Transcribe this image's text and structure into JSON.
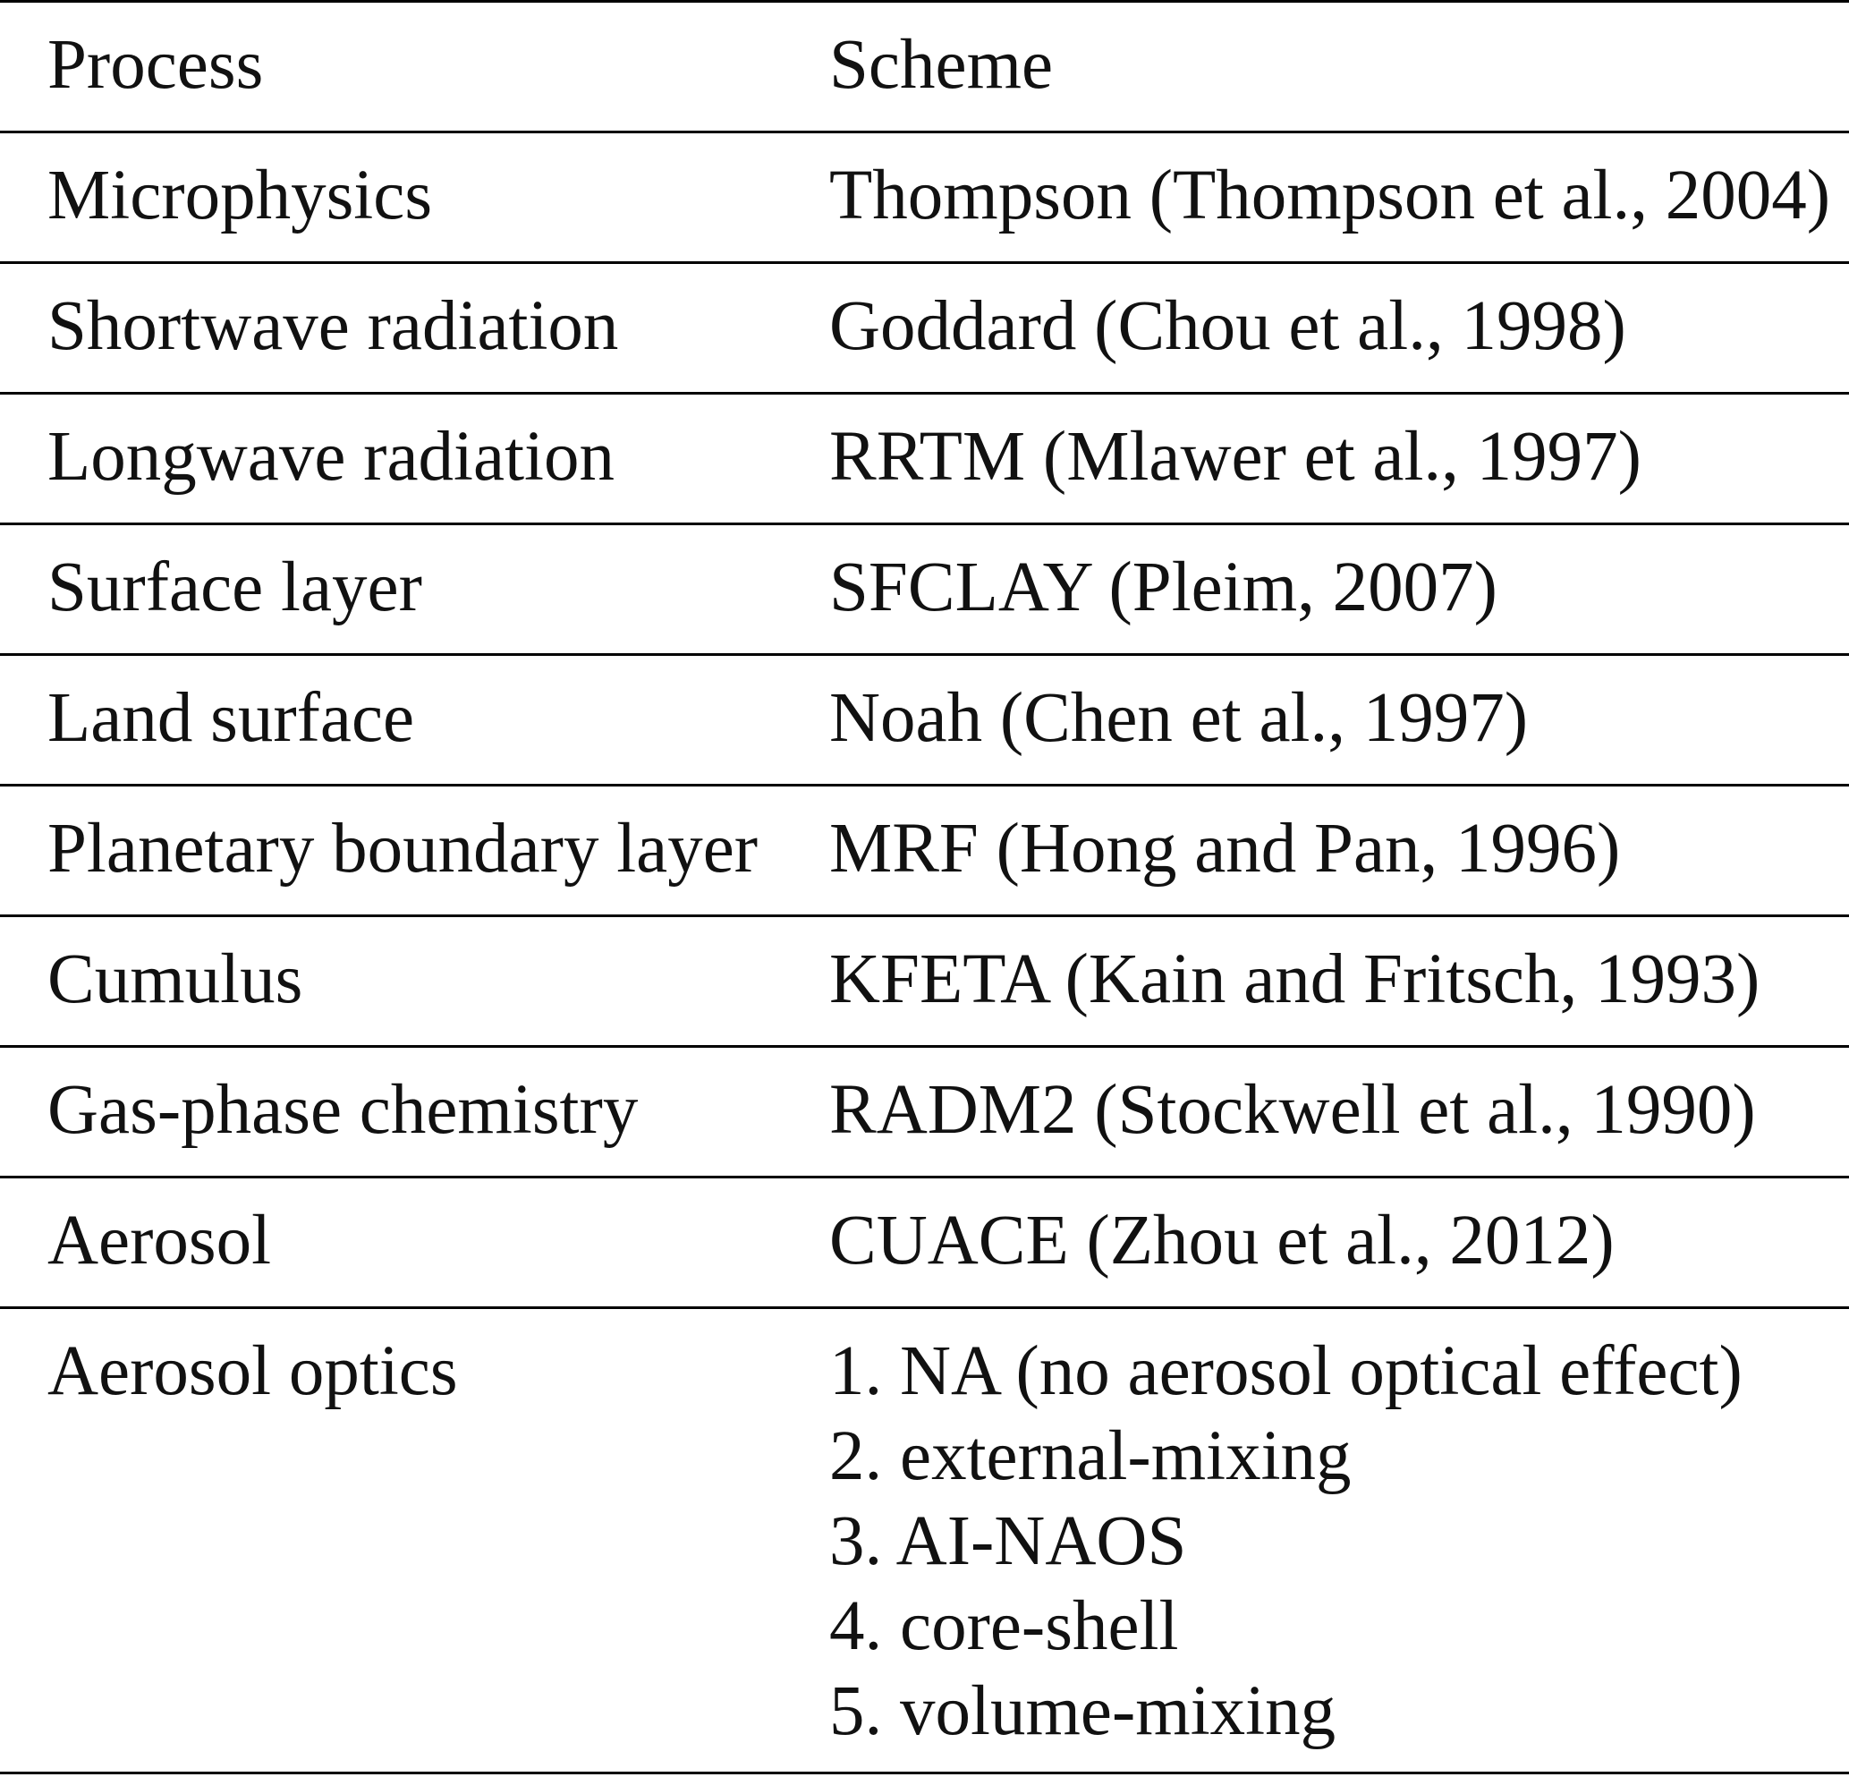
{
  "table": {
    "header": [
      "Process",
      "Scheme"
    ],
    "rows": [
      [
        "Microphysics",
        "Thompson (Thompson et al., 2004)"
      ],
      [
        "Shortwave radiation",
        "Goddard (Chou et al., 1998)"
      ],
      [
        "Longwave radiation",
        "RRTM (Mlawer et al., 1997)"
      ],
      [
        "Surface layer",
        "SFCLAY (Pleim, 2007)"
      ],
      [
        "Land surface",
        "Noah (Chen et al., 1997)"
      ],
      [
        "Planetary boundary layer",
        "MRF (Hong and Pan, 1996)"
      ],
      [
        "Cumulus",
        "KFETA (Kain and Fritsch, 1993)"
      ],
      [
        "Gas-phase chemistry",
        "RADM2 (Stockwell et al., 1990)"
      ],
      [
        "Aerosol",
        "CUACE (Zhou et al., 2012)"
      ],
      [
        "Aerosol optics",
        [
          "1. NA (no aerosol optical effect)",
          "2. external-mixing",
          "3. AI-NAOS",
          "4. core-shell",
          "5. volume-mixing"
        ]
      ]
    ]
  }
}
